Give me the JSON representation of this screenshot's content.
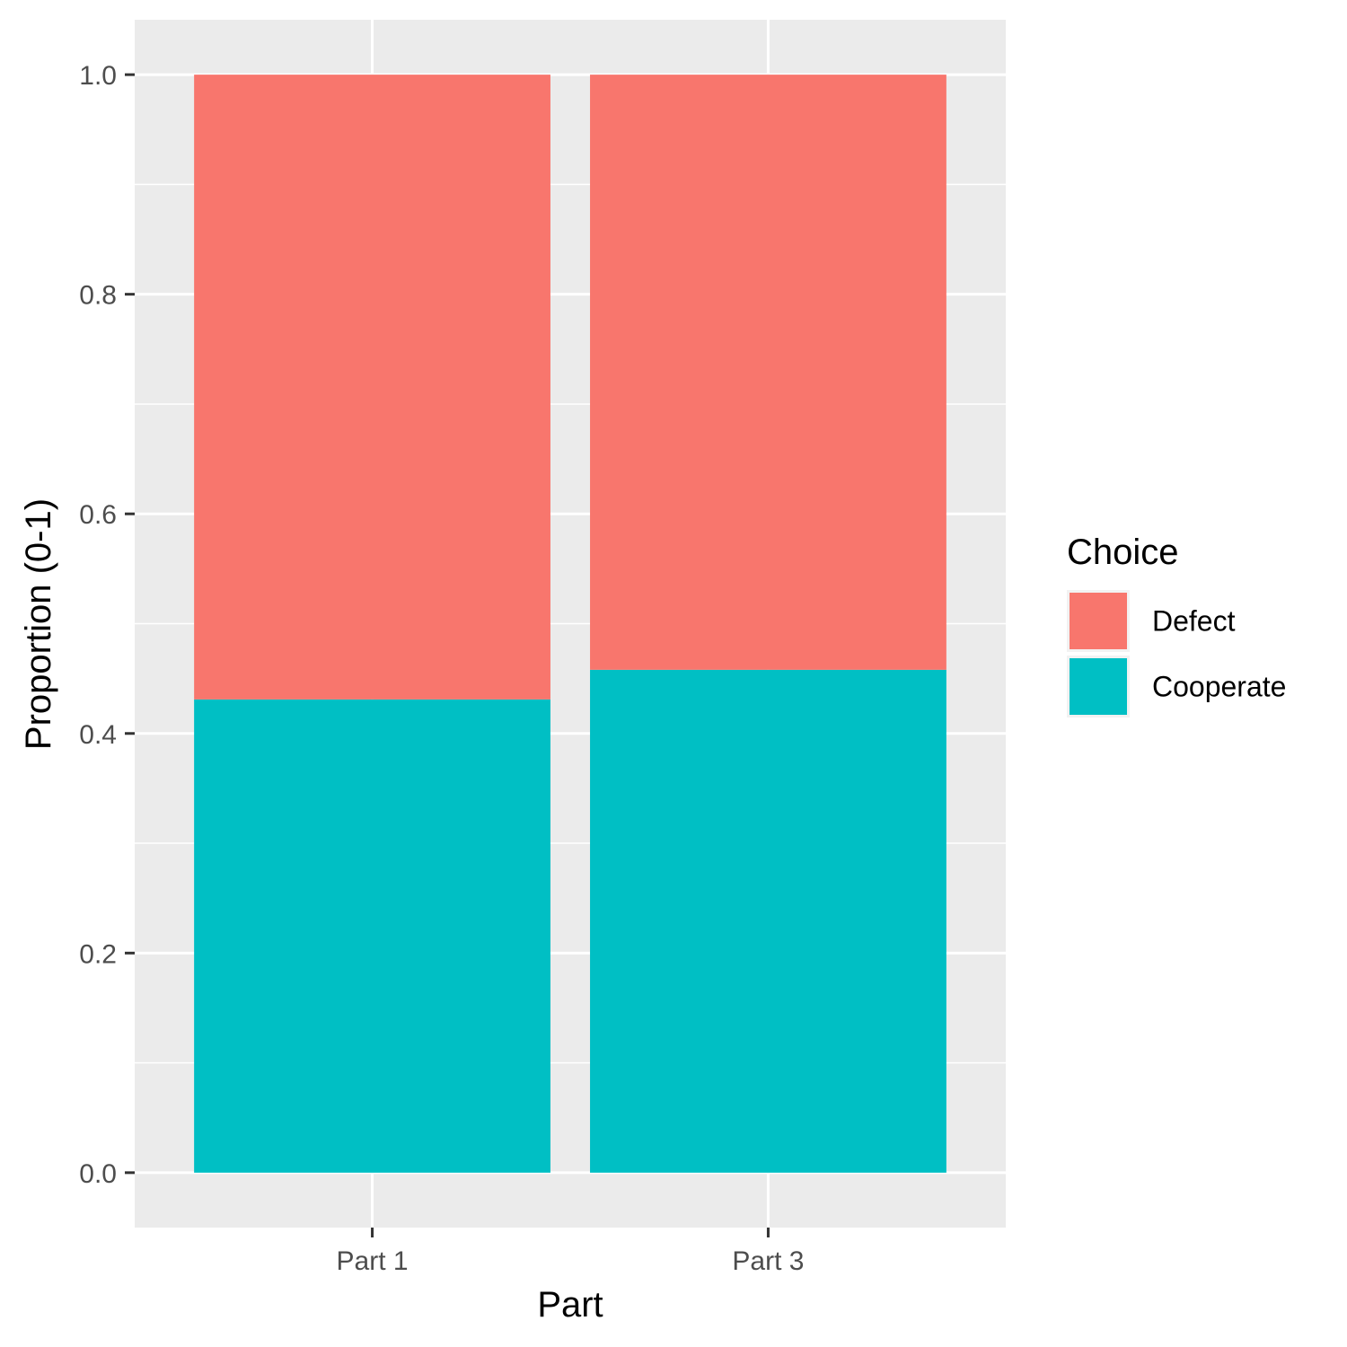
{
  "chart_data": {
    "type": "bar",
    "stacked": true,
    "title": "",
    "xlabel": "Part",
    "ylabel": "Proportion (0-1)",
    "categories": [
      "Part 1",
      "Part 3"
    ],
    "series": [
      {
        "name": "Cooperate",
        "values": [
          0.431,
          0.458
        ],
        "color": "#00BFC4"
      },
      {
        "name": "Defect",
        "values": [
          0.569,
          0.542
        ],
        "color": "#F8766D"
      }
    ],
    "ylim": [
      -0.05,
      1.05
    ],
    "yticks": [
      0.0,
      0.2,
      0.4,
      0.6,
      0.8,
      1.0
    ],
    "ytick_labels": [
      "0.0",
      "0.2",
      "0.4",
      "0.6",
      "0.8",
      "1.0"
    ],
    "grid": true,
    "panel_background": "#EBEBEB",
    "legend": {
      "title": "Choice",
      "position": "right",
      "entries": [
        {
          "label": "Defect",
          "color": "#F8766D"
        },
        {
          "label": "Cooperate",
          "color": "#00BFC4"
        }
      ]
    }
  }
}
